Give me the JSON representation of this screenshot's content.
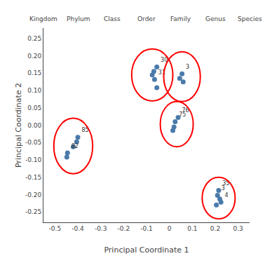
{
  "chart_data": {
    "type": "scatter",
    "title_bar_labels": [
      "Kingdom",
      "Phylum",
      "Class",
      "Order",
      "Family",
      "Genus",
      "Species"
    ],
    "xlabel": "Principal Coordinate 1",
    "ylabel": "Principal Coordinate 2",
    "x": [
      -0.055,
      -0.068,
      -0.075,
      -0.065,
      -0.055,
      0.055,
      0.045,
      0.06,
      0.038,
      0.025,
      0.02,
      0.015,
      -0.4,
      -0.405,
      -0.42,
      -0.445,
      -0.448,
      0.215,
      0.21,
      0.22,
      0.225,
      0.205
    ],
    "values": [
      0.168,
      0.155,
      0.145,
      0.132,
      0.108,
      0.148,
      0.135,
      0.125,
      0.022,
      0.01,
      -0.005,
      -0.015,
      -0.035,
      -0.048,
      -0.062,
      -0.08,
      -0.092,
      -0.188,
      -0.202,
      -0.213,
      -0.222,
      -0.23
    ],
    "point_labels": [
      "30",
      null,
      null,
      "31",
      null,
      "3",
      null,
      null,
      "76",
      "75",
      null,
      null,
      "85",
      null,
      null,
      "82",
      null,
      "35",
      "3",
      null,
      "4",
      null
    ],
    "color": "#4a7aaa",
    "circles": [
      {
        "cx": -0.075,
        "cy": 0.145,
        "rx": 0.09,
        "ry": 0.075,
        "color": "red"
      },
      {
        "cx": 0.055,
        "cy": 0.14,
        "rx": 0.08,
        "ry": 0.072,
        "color": "red"
      },
      {
        "cx": 0.032,
        "cy": 0.003,
        "rx": 0.072,
        "ry": 0.065,
        "color": "red"
      },
      {
        "cx": -0.42,
        "cy": -0.06,
        "rx": 0.085,
        "ry": 0.08,
        "color": "red"
      },
      {
        "cx": 0.215,
        "cy": -0.21,
        "rx": 0.072,
        "ry": 0.06,
        "color": "red"
      }
    ],
    "xlim": [
      -0.55,
      0.35
    ],
    "ylim": [
      -0.28,
      0.28
    ],
    "xticks": [
      -0.5,
      -0.4,
      -0.3,
      -0.2,
      -0.1,
      0,
      0.1,
      0.2,
      0.3
    ],
    "yticks": [
      -0.25,
      {
        "value": -0.2,
        "label": "-0.20"
      },
      -0.15,
      {
        "value": -0.1,
        "label": "-0.10"
      },
      -0.05,
      {
        "value": 0,
        "label": "0.00"
      },
      0.05,
      {
        "value": 0.1,
        "label": "0.10"
      },
      0.15,
      {
        "value": 0.2,
        "label": "0.20"
      },
      0.25
    ],
    "grid": false
  }
}
